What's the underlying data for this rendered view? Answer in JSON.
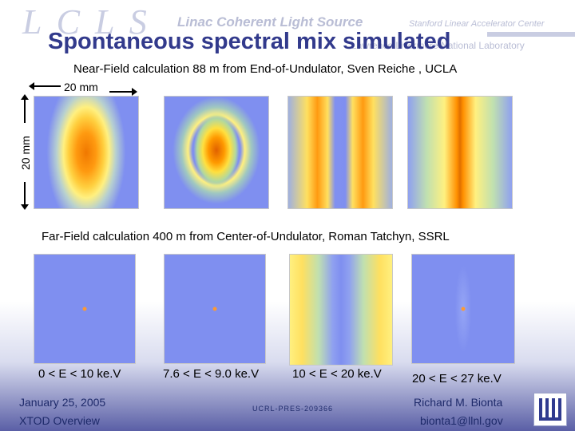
{
  "header": {
    "logo_text": "LCLS",
    "org_title": "Linac Coherent Light Source",
    "org_center": "Stanford Linear Accelerator Center",
    "lab_text": "Lawrence Livermore National Laboratory"
  },
  "title": "Spontaneous spectral mix simulated",
  "near_field": {
    "caption": "Near-Field calculation 88 m from End-of-Undulator, Sven Reiche , UCLA",
    "scale_h": "20 mm",
    "scale_v": "20 mm"
  },
  "far_field": {
    "caption": "Far-Field calculation 400 m from Center-of-Undulator, Roman Tatchyn, SSRL",
    "labels": [
      "0 < E < 10 ke.V",
      "7.6 < E < 9.0 ke.V",
      "10 < E < 20 ke.V",
      "20 < E < 27 ke.V"
    ]
  },
  "footer": {
    "date": "January 25, 2005",
    "meeting": "XTOD  Overview",
    "id": "UCRL-PRES-209366",
    "author": "Richard M. Bionta",
    "email": "bionta1@llnl.gov"
  },
  "colors": {
    "title": "#323a8c",
    "bg_field": "#7f8ff0"
  }
}
